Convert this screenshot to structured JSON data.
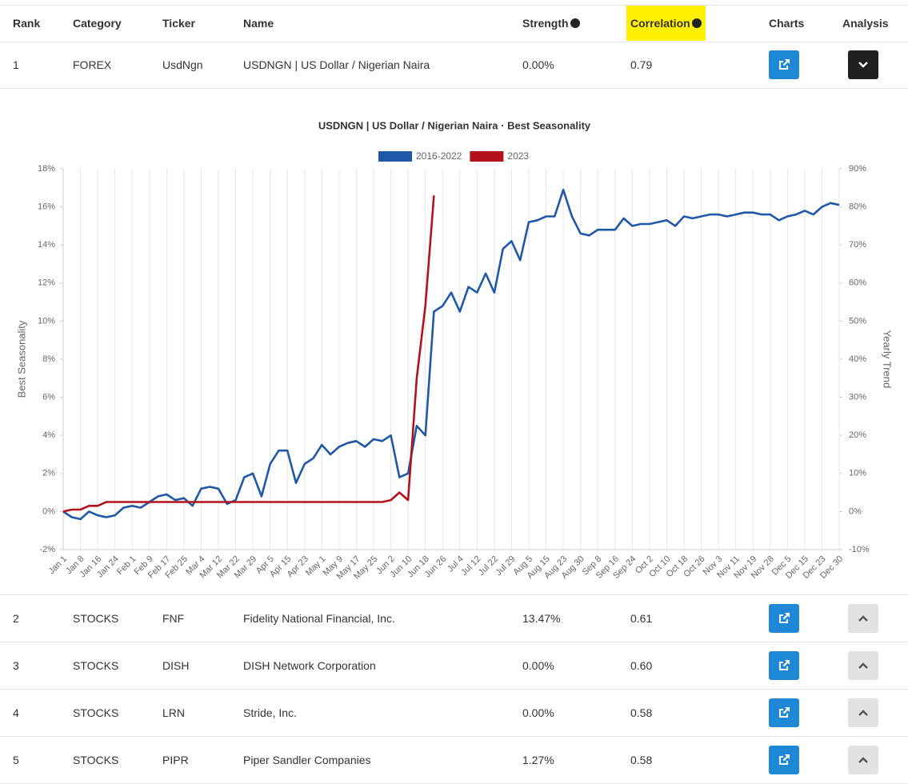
{
  "table": {
    "headers": [
      "Rank",
      "Category",
      "Ticker",
      "Name",
      "Strength",
      "Correlation",
      "Charts",
      "Analysis"
    ],
    "rows": [
      [
        "1",
        "FOREX",
        "UsdNgn",
        "USDNGN | US Dollar / Nigerian Naira",
        "0.00%",
        "0.79"
      ],
      [
        "2",
        "STOCKS",
        "FNF",
        "Fidelity National Financial, Inc.",
        "13.47%",
        "0.61"
      ],
      [
        "3",
        "STOCKS",
        "DISH",
        "DISH Network Corporation",
        "0.00%",
        "0.60"
      ],
      [
        "4",
        "STOCKS",
        "LRN",
        "Stride, Inc.",
        "0.00%",
        "0.58"
      ],
      [
        "5",
        "STOCKS",
        "PIPR",
        "Piper Sandler Companies",
        "1.27%",
        "0.58"
      ]
    ]
  },
  "chart_data": {
    "type": "line",
    "title": "USDNGN | US Dollar / Nigerian Naira · Best Seasonality",
    "ylabel": "Best Seasonality",
    "y2label": "Yearly Trend",
    "categories": [
      "Jan 1",
      null,
      "Jan 8",
      null,
      "Jan 16",
      null,
      "Jan 24",
      null,
      "Feb 1",
      null,
      "Feb 9",
      null,
      "Feb 17",
      null,
      "Feb 25",
      null,
      "Mar 4",
      null,
      "Mar 12",
      null,
      "Mar 22",
      null,
      "Mar 29",
      null,
      "Apr 5",
      null,
      "Apr 15",
      null,
      "Apr 23",
      null,
      "May 1",
      null,
      "May 9",
      null,
      "May 17",
      null,
      "May 25",
      null,
      "Jun 2",
      null,
      "Jun 10",
      null,
      "Jun 18",
      null,
      "Jun 26",
      null,
      "Jul 4",
      null,
      "Jul 12",
      null,
      "Jul 22",
      null,
      "Jul 29",
      null,
      "Aug 5",
      null,
      "Aug 15",
      null,
      "Aug 23",
      null,
      "Aug 30",
      null,
      "Sep 8",
      null,
      "Sep 16",
      null,
      "Sep 24",
      null,
      "Oct 2",
      null,
      "Oct 10",
      null,
      "Oct 18",
      null,
      "Oct 26",
      null,
      "Nov 3",
      null,
      "Nov 11",
      null,
      "Nov 19",
      null,
      "Nov 28",
      null,
      "Dec 5",
      null,
      "Dec 15",
      null,
      "Dec 23",
      null,
      "Dec 30"
    ],
    "series": [
      {
        "name": "2016-2022",
        "color": "#1f58a8",
        "values": [
          0,
          -0.3,
          -0.4,
          0,
          -0.2,
          -0.3,
          -0.2,
          0.2,
          0.3,
          0.2,
          0.5,
          0.8,
          0.9,
          0.6,
          0.7,
          0.3,
          1.2,
          1.3,
          1.2,
          0.4,
          0.6,
          1.8,
          2.0,
          0.8,
          2.5,
          3.2,
          3.2,
          1.5,
          2.5,
          2.8,
          3.5,
          3.0,
          3.4,
          3.6,
          3.7,
          3.4,
          3.8,
          3.7,
          4.0,
          1.8,
          2.0,
          4.5,
          4.0,
          10.5,
          10.8,
          11.5,
          10.5,
          11.8,
          11.5,
          12.5,
          11.5,
          13.8,
          14.2,
          13.2,
          15.2,
          15.3,
          15.5,
          15.5,
          16.9,
          15.5,
          14.6,
          14.5,
          14.8,
          14.8,
          14.8,
          15.4,
          15.0,
          15.1,
          15.1,
          15.2,
          15.3,
          15.0,
          15.5,
          15.4,
          15.5,
          15.6,
          15.6,
          15.5,
          15.6,
          15.7,
          15.7,
          15.6,
          15.6,
          15.3,
          15.5,
          15.6,
          15.8,
          15.6,
          16.0,
          16.2,
          16.1
        ]
      },
      {
        "name": "2023",
        "color": "#b3121c",
        "axis": "y2",
        "values": [
          0,
          0.5,
          0.5,
          1.5,
          1.5,
          2.5,
          2.5,
          2.5,
          2.5,
          2.5,
          2.5,
          2.5,
          2.5,
          2.5,
          2.5,
          2.5,
          2.5,
          2.5,
          2.5,
          2.5,
          2.5,
          2.5,
          2.5,
          2.5,
          2.5,
          2.5,
          2.5,
          2.5,
          2.5,
          2.5,
          2.5,
          2.5,
          2.5,
          2.5,
          2.5,
          2.5,
          2.5,
          2.5,
          3,
          5,
          3,
          35,
          54,
          83,
          null,
          null,
          null,
          null,
          null,
          null,
          null,
          null,
          null,
          null,
          null,
          null,
          null,
          null,
          null,
          null,
          null,
          null,
          null,
          null,
          null,
          null,
          null,
          null,
          null,
          null,
          null,
          null,
          null,
          null,
          null,
          null,
          null,
          null,
          null,
          null,
          null,
          null,
          null,
          null,
          null,
          null,
          null,
          null,
          null,
          null,
          null
        ]
      }
    ],
    "ylim": [
      -2,
      18
    ],
    "yticks": [
      {
        "value": -2,
        "label": "-2%"
      },
      {
        "value": 0,
        "label": "0%"
      },
      {
        "value": 2,
        "label": "2%"
      },
      {
        "value": 4,
        "label": "4%"
      },
      {
        "value": 6,
        "label": "6%"
      },
      {
        "value": 8,
        "label": "8%"
      },
      {
        "value": 10,
        "label": "10%"
      },
      {
        "value": 12,
        "label": "12%"
      },
      {
        "value": 14,
        "label": "14%"
      },
      {
        "value": 16,
        "label": "16%"
      },
      {
        "value": 18,
        "label": "18%"
      }
    ],
    "y2lim": [
      -10,
      90
    ],
    "y2ticks": [
      {
        "value": -10,
        "label": "-10%"
      },
      {
        "value": 0,
        "label": "0%"
      },
      {
        "value": 10,
        "label": "10%"
      },
      {
        "value": 20,
        "label": "20%"
      },
      {
        "value": 30,
        "label": "30%"
      },
      {
        "value": 40,
        "label": "40%"
      },
      {
        "value": 50,
        "label": "50%"
      },
      {
        "value": 60,
        "label": "60%"
      },
      {
        "value": 70,
        "label": "70%"
      },
      {
        "value": 80,
        "label": "80%"
      },
      {
        "value": 90,
        "label": "90%"
      }
    ],
    "xgrid": true,
    "legend": "top"
  }
}
